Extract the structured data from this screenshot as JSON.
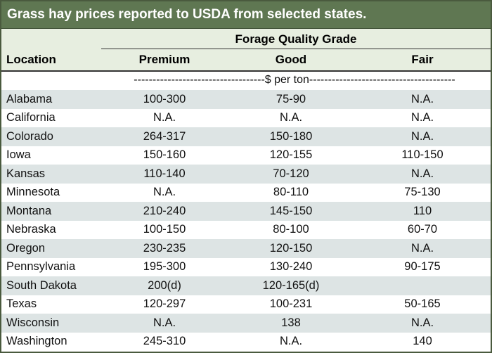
{
  "title": "Grass hay prices reported to USDA from selected states.",
  "header": {
    "group": "Forage Quality Grade",
    "location": "Location",
    "premium": "Premium",
    "good": "Good",
    "fair": "Fair"
  },
  "unit_row": "-----------------------------------$ per ton---------------------------------------",
  "rows": [
    {
      "location": "Alabama",
      "premium": "100-300",
      "good": "75-90",
      "fair": "N.A."
    },
    {
      "location": "California",
      "premium": "N.A.",
      "good": "N.A.",
      "fair": "N.A."
    },
    {
      "location": "Colorado",
      "premium": "264-317",
      "good": "150-180",
      "fair": "N.A."
    },
    {
      "location": "Iowa",
      "premium": "150-160",
      "good": "120-155",
      "fair": "110-150"
    },
    {
      "location": "Kansas",
      "premium": "110-140",
      "good": "70-120",
      "fair": "N.A."
    },
    {
      "location": "Minnesota",
      "premium": "N.A.",
      "good": "80-110",
      "fair": "75-130"
    },
    {
      "location": "Montana",
      "premium": "210-240",
      "good": "145-150",
      "fair": "110"
    },
    {
      "location": "Nebraska",
      "premium": "100-150",
      "good": "80-100",
      "fair": "60-70"
    },
    {
      "location": "Oregon",
      "premium": "230-235",
      "good": "120-150",
      "fair": "N.A."
    },
    {
      "location": "Pennsylvania",
      "premium": "195-300",
      "good": "130-240",
      "fair": "90-175"
    },
    {
      "location": "South Dakota",
      "premium": "200(d)",
      "good": "120-165(d)",
      "fair": ""
    },
    {
      "location": "Texas",
      "premium": "120-297",
      "good": "100-231",
      "fair": "50-165"
    },
    {
      "location": "Wisconsin",
      "premium": "N.A.",
      "good": "138",
      "fair": "N.A."
    },
    {
      "location": "Washington",
      "premium": "245-310",
      "good": "N.A.",
      "fair": "140"
    }
  ]
}
